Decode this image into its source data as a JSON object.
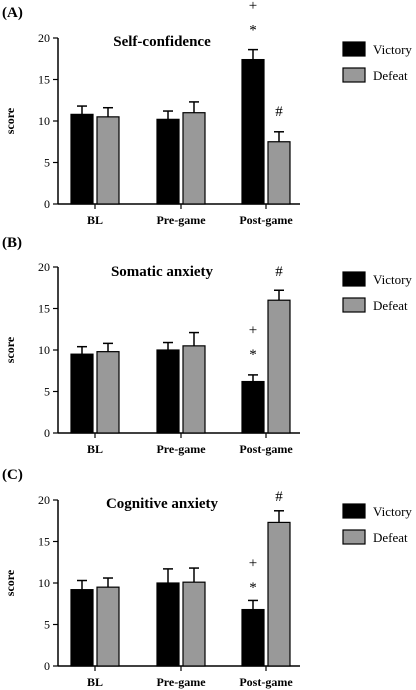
{
  "figure": {
    "palette": {
      "victory": "#000000",
      "defeat": "#999999",
      "annotation_plus": "#555555",
      "annotation_star": "#000000",
      "annotation_hash": "#555555"
    }
  },
  "chart_data": [
    {
      "panel": "(A)",
      "type": "bar",
      "title": "Self-confidence",
      "ylabel": "score",
      "ylim": [
        0,
        20
      ],
      "yticks": [
        0,
        5,
        10,
        15,
        20
      ],
      "categories": [
        "BL",
        "Pre-game",
        "Post-game"
      ],
      "series": [
        {
          "name": "Victory",
          "values": [
            10.8,
            10.2,
            17.4
          ],
          "errors": [
            1.0,
            1.0,
            1.2
          ]
        },
        {
          "name": "Defeat",
          "values": [
            10.5,
            11.0,
            7.5
          ],
          "errors": [
            1.1,
            1.3,
            1.2
          ]
        }
      ],
      "annotations": [
        {
          "text": "+",
          "category": 2,
          "series": 0,
          "value": 24.0
        },
        {
          "text": "*",
          "category": 2,
          "series": 0,
          "value": 21.0
        },
        {
          "text": "#",
          "category": 2,
          "series": 1,
          "value": 11.2
        }
      ],
      "legend_position": "top-right"
    },
    {
      "panel": "(B)",
      "type": "bar",
      "title": "Somatic anxiety",
      "ylabel": "score",
      "ylim": [
        0,
        20
      ],
      "yticks": [
        0,
        5,
        10,
        15,
        20
      ],
      "categories": [
        "BL",
        "Pre-game",
        "Post-game"
      ],
      "series": [
        {
          "name": "Victory",
          "values": [
            9.5,
            10.0,
            6.2
          ],
          "errors": [
            0.9,
            0.9,
            0.8
          ]
        },
        {
          "name": "Defeat",
          "values": [
            9.8,
            10.5,
            16.0
          ],
          "errors": [
            1.0,
            1.6,
            1.2
          ]
        }
      ],
      "annotations": [
        {
          "text": "+",
          "category": 2,
          "series": 0,
          "value": 12.5
        },
        {
          "text": "*",
          "category": 2,
          "series": 0,
          "value": 9.5
        },
        {
          "text": "#",
          "category": 2,
          "series": 1,
          "value": 19.5
        }
      ],
      "legend_position": "top-right"
    },
    {
      "panel": "(C)",
      "type": "bar",
      "title": "Cognitive anxiety",
      "ylabel": "score",
      "ylim": [
        0,
        20
      ],
      "yticks": [
        0,
        5,
        10,
        15,
        20
      ],
      "categories": [
        "BL",
        "Pre-game",
        "Post-game"
      ],
      "series": [
        {
          "name": "Victory",
          "values": [
            9.2,
            10.0,
            6.8
          ],
          "errors": [
            1.1,
            1.7,
            1.1
          ]
        },
        {
          "name": "Defeat",
          "values": [
            9.5,
            10.1,
            17.3
          ],
          "errors": [
            1.1,
            1.7,
            1.4
          ]
        }
      ],
      "annotations": [
        {
          "text": "+",
          "category": 2,
          "series": 0,
          "value": 12.5
        },
        {
          "text": "*",
          "category": 2,
          "series": 0,
          "value": 9.5
        },
        {
          "text": "#",
          "category": 2,
          "series": 1,
          "value": 20.5
        }
      ],
      "legend_position": "top-right"
    }
  ]
}
